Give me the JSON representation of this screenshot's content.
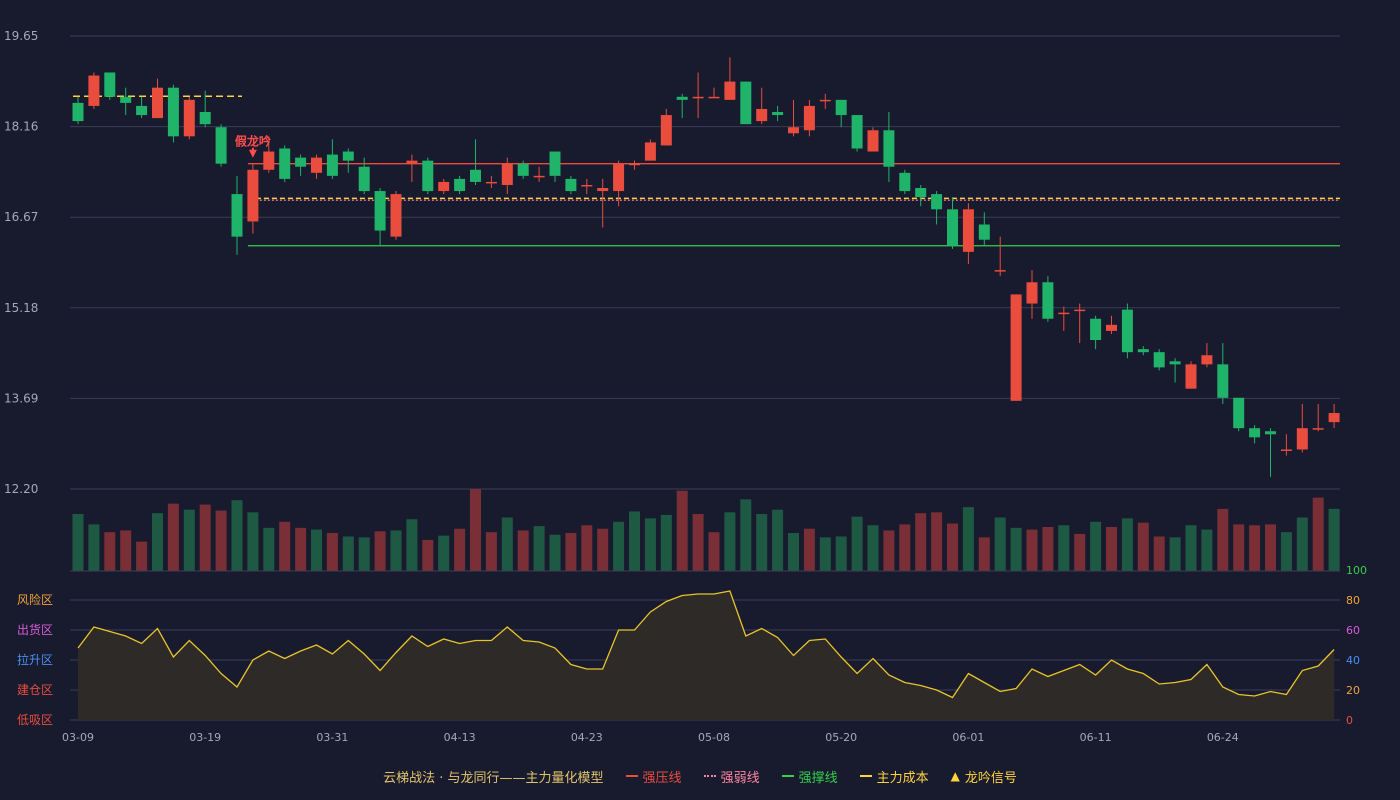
{
  "colors": {
    "bg": "#181a2e",
    "up": "#ea4d3d",
    "down": "#1fb46a",
    "grid": "#3a3d55",
    "axis_text": "#a6a8b8",
    "pressure": "#ea4d3d",
    "weak": "#ff86a0",
    "support": "#35cf4c",
    "cost": "#ffd23f",
    "osc_line": "#e8c42a",
    "osc_fill": "#2e2b27",
    "signal": "#ff4d4d"
  },
  "chart_data": {
    "type": "candlestick",
    "x_labels": [
      "03-09",
      "03-19",
      "03-31",
      "04-13",
      "04-23",
      "05-08",
      "05-20",
      "06-01",
      "06-11",
      "06-24"
    ],
    "x_label_indices": [
      0,
      8,
      16,
      24,
      32,
      40,
      48,
      56,
      64,
      72
    ],
    "price_ticks": [
      "19.65",
      "18.16",
      "16.67",
      "15.18",
      "13.69",
      "12.20"
    ],
    "price_range": [
      12.2,
      19.65
    ],
    "candles": [
      [
        18.55,
        18.25,
        18.65,
        18.2
      ],
      [
        18.5,
        19.0,
        19.05,
        18.45
      ],
      [
        19.05,
        18.65,
        19.05,
        18.6
      ],
      [
        18.65,
        18.55,
        18.8,
        18.35
      ],
      [
        18.5,
        18.35,
        18.65,
        18.3
      ],
      [
        18.3,
        18.8,
        18.95,
        18.3
      ],
      [
        18.8,
        18.0,
        18.85,
        17.9
      ],
      [
        18.0,
        18.6,
        18.65,
        17.95
      ],
      [
        18.4,
        18.2,
        18.75,
        18.15
      ],
      [
        18.15,
        17.55,
        18.2,
        17.5
      ],
      [
        17.05,
        16.35,
        17.35,
        16.05
      ],
      [
        16.6,
        17.45,
        17.55,
        16.4
      ],
      [
        17.45,
        17.75,
        18.0,
        17.4
      ],
      [
        17.8,
        17.3,
        17.85,
        17.25
      ],
      [
        17.65,
        17.5,
        17.7,
        17.35
      ],
      [
        17.4,
        17.65,
        17.7,
        17.3
      ],
      [
        17.7,
        17.35,
        17.95,
        17.3
      ],
      [
        17.75,
        17.6,
        17.8,
        17.4
      ],
      [
        17.5,
        17.1,
        17.65,
        17.05
      ],
      [
        17.1,
        16.45,
        17.15,
        16.2
      ],
      [
        16.35,
        17.05,
        17.1,
        16.3
      ],
      [
        17.55,
        17.6,
        17.7,
        17.25
      ],
      [
        17.6,
        17.1,
        17.65,
        17.05
      ],
      [
        17.1,
        17.25,
        17.3,
        17.05
      ],
      [
        17.3,
        17.1,
        17.35,
        17.05
      ],
      [
        17.45,
        17.25,
        17.95,
        17.2
      ],
      [
        17.25,
        17.25,
        17.35,
        17.15
      ],
      [
        17.2,
        17.55,
        17.65,
        17.05
      ],
      [
        17.55,
        17.35,
        17.6,
        17.3
      ],
      [
        17.35,
        17.35,
        17.5,
        17.25
      ],
      [
        17.75,
        17.35,
        17.75,
        17.25
      ],
      [
        17.3,
        17.1,
        17.35,
        17.05
      ],
      [
        17.2,
        17.2,
        17.3,
        17.05
      ],
      [
        17.1,
        17.15,
        17.3,
        16.5
      ],
      [
        17.1,
        17.55,
        17.6,
        16.85
      ],
      [
        17.55,
        17.55,
        17.6,
        17.45
      ],
      [
        17.6,
        17.9,
        17.95,
        17.6
      ],
      [
        17.85,
        18.35,
        18.45,
        17.85
      ],
      [
        18.65,
        18.6,
        18.7,
        18.3
      ],
      [
        18.65,
        18.65,
        19.05,
        18.3
      ],
      [
        18.65,
        18.65,
        18.8,
        18.65
      ],
      [
        18.6,
        18.9,
        19.3,
        18.6
      ],
      [
        18.9,
        18.2,
        18.9,
        18.2
      ],
      [
        18.25,
        18.45,
        18.8,
        18.2
      ],
      [
        18.4,
        18.35,
        18.5,
        18.25
      ],
      [
        18.05,
        18.15,
        18.6,
        18.0
      ],
      [
        18.1,
        18.5,
        18.6,
        18.0
      ],
      [
        18.6,
        18.6,
        18.7,
        18.45
      ],
      [
        18.6,
        18.35,
        18.6,
        18.15
      ],
      [
        18.35,
        17.8,
        18.35,
        17.75
      ],
      [
        17.75,
        18.1,
        18.15,
        17.75
      ],
      [
        18.1,
        17.5,
        18.4,
        17.25
      ],
      [
        17.4,
        17.1,
        17.45,
        17.05
      ],
      [
        17.15,
        17.0,
        17.2,
        16.85
      ],
      [
        17.05,
        16.8,
        17.1,
        16.55
      ],
      [
        16.8,
        16.2,
        17.0,
        16.15
      ],
      [
        16.1,
        16.8,
        16.9,
        15.9
      ],
      [
        16.55,
        16.3,
        16.75,
        16.2
      ],
      [
        15.8,
        15.8,
        16.35,
        15.7
      ],
      [
        13.65,
        15.4,
        15.4,
        13.65
      ],
      [
        15.25,
        15.6,
        15.8,
        15.0
      ],
      [
        15.6,
        15.0,
        15.7,
        14.95
      ],
      [
        15.1,
        15.1,
        15.2,
        14.8
      ],
      [
        15.15,
        15.15,
        15.25,
        14.6
      ],
      [
        15.0,
        14.65,
        15.05,
        14.5
      ],
      [
        14.8,
        14.9,
        15.05,
        14.75
      ],
      [
        15.15,
        14.45,
        15.25,
        14.35
      ],
      [
        14.5,
        14.45,
        14.55,
        14.4
      ],
      [
        14.45,
        14.2,
        14.5,
        14.15
      ],
      [
        14.3,
        14.25,
        14.35,
        13.95
      ],
      [
        13.85,
        14.25,
        14.3,
        13.85
      ],
      [
        14.25,
        14.4,
        14.6,
        14.2
      ],
      [
        14.25,
        13.7,
        14.6,
        13.6
      ],
      [
        13.7,
        13.2,
        13.7,
        13.15
      ],
      [
        13.2,
        13.05,
        13.25,
        12.95
      ],
      [
        13.15,
        13.1,
        13.2,
        12.4
      ],
      [
        12.85,
        12.85,
        13.1,
        12.75
      ],
      [
        12.85,
        13.2,
        13.6,
        12.8
      ],
      [
        13.2,
        13.2,
        13.6,
        13.15
      ],
      [
        13.3,
        13.45,
        13.6,
        13.2
      ]
    ],
    "volume": [
      66,
      54,
      45,
      47,
      34,
      67,
      78,
      71,
      77,
      70,
      82,
      68,
      50,
      57,
      50,
      48,
      44,
      40,
      39,
      46,
      47,
      60,
      36,
      41,
      49,
      95,
      45,
      62,
      47,
      52,
      42,
      44,
      53,
      49,
      57,
      69,
      61,
      65,
      93,
      66,
      45,
      68,
      83,
      66,
      71,
      44,
      49,
      39,
      40,
      63,
      53,
      47,
      54,
      67,
      68,
      55,
      74,
      39,
      62,
      50,
      48,
      51,
      53,
      43,
      57,
      51,
      61,
      56,
      40,
      39,
      53,
      48,
      72,
      54,
      53,
      54,
      45,
      62,
      85,
      72
    ],
    "volume_up": [
      false,
      false,
      true,
      true,
      true,
      false,
      true,
      false,
      true,
      true,
      false,
      false,
      false,
      true,
      true,
      false,
      true,
      false,
      false,
      true,
      false,
      false,
      true,
      false,
      true,
      true,
      true,
      false,
      true,
      false,
      false,
      true,
      true,
      true,
      false,
      false,
      false,
      false,
      true,
      true,
      true,
      false,
      false,
      false,
      false,
      false,
      true,
      false,
      false,
      false,
      false,
      true,
      true,
      true,
      true,
      true,
      false,
      true,
      false,
      false,
      true,
      true,
      false,
      true,
      false,
      true,
      false,
      true,
      true,
      false,
      false,
      false,
      true,
      true,
      true,
      true,
      false,
      false,
      true,
      false
    ],
    "lines": {
      "pressure": {
        "value": 17.55,
        "from": 11
      },
      "support": {
        "value": 16.2,
        "from": 11
      },
      "weak": {
        "value": 16.95,
        "from": 11
      },
      "cost": {
        "value": 16.98,
        "from": 11
      },
      "cost_early": {
        "value": 18.66,
        "from": 0,
        "to": 10
      }
    },
    "signal_index": 11,
    "signal_label": "假龙吟",
    "oscillator": [
      48,
      62,
      59,
      56,
      51,
      61,
      42,
      53,
      43,
      31,
      22,
      40,
      46,
      41,
      46,
      50,
      44,
      53,
      44,
      33,
      45,
      56,
      49,
      54,
      51,
      53,
      53,
      62,
      53,
      52,
      48,
      37,
      34,
      34,
      60,
      60,
      72,
      79,
      83,
      84,
      84,
      86,
      56,
      61,
      55,
      43,
      53,
      54,
      42,
      31,
      41,
      30,
      25,
      23,
      20,
      15,
      31,
      25,
      19,
      21,
      34,
      29,
      33,
      37,
      30,
      40,
      34,
      31,
      24,
      25,
      27,
      37,
      22,
      17,
      16,
      19,
      17,
      33,
      36,
      47
    ],
    "osc_ticks": [
      "100",
      "80",
      "60",
      "40",
      "20",
      "0"
    ],
    "osc_zones": [
      "风险区",
      "出货区",
      "拉升区",
      "建仓区",
      "低吸区"
    ],
    "osc_tick_colors": [
      "#35cf4c",
      "#f0a23a",
      "#d95bd9",
      "#4a8ff0",
      "#f0a23a",
      "#ea4d3d"
    ],
    "osc_zone_colors": [
      "#f0a23a",
      "#d95bd9",
      "#4a8ff0",
      "#ea4d3d",
      "#ea4d3d"
    ]
  },
  "legend": {
    "title": "云梯战法 · 与龙同行——主力量化模型",
    "pressure": "强压线",
    "weak": "强弱线",
    "support": "强撑线",
    "cost": "主力成本",
    "signal": "龙吟信号"
  }
}
